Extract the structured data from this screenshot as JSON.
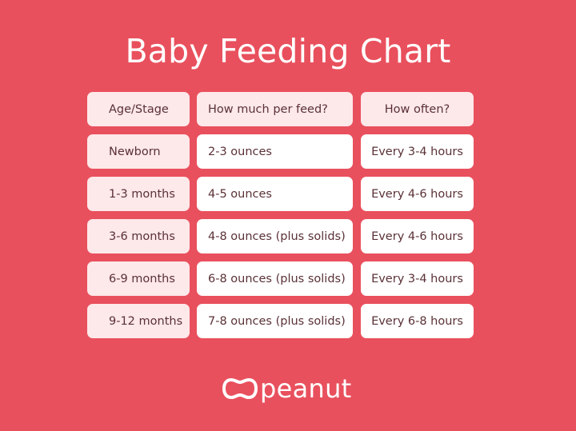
{
  "title": "Baby Feeding Chart",
  "headers": {
    "age": "Age/Stage",
    "amount": "How much per feed?",
    "often": "How often?"
  },
  "rows": [
    {
      "age": "Newborn",
      "amount": "2-3 ounces",
      "often": "Every 3-4 hours"
    },
    {
      "age": "1-3 months",
      "amount": "4-5 ounces",
      "often": "Every 4-6 hours"
    },
    {
      "age": "3-6 months",
      "amount": "4-8 ounces (plus solids)",
      "often": "Every 4-6 hours"
    },
    {
      "age": "6-9 months",
      "amount": "6-8 ounces (plus solids)",
      "often": "Every 3-4 hours"
    },
    {
      "age": "9-12 months",
      "amount": "7-8 ounces (plus solids)",
      "often": "Every 6-8 hours"
    }
  ],
  "brand": {
    "name": "peanut",
    "icon": "peanut-logo-icon"
  },
  "colors": {
    "background": "#e9505d",
    "cell": "#ffffff",
    "cell_tint": "#fde8ea",
    "text": "#5a3136"
  }
}
